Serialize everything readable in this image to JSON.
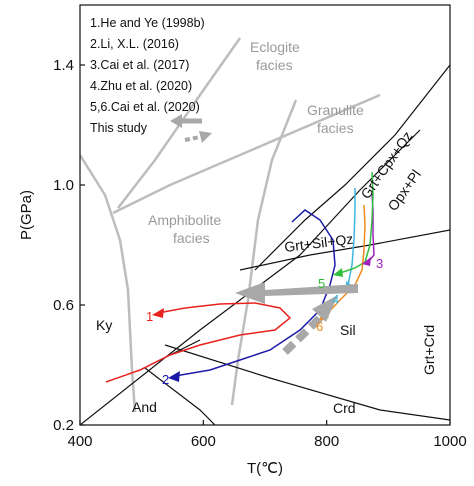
{
  "chart_data": {
    "type": "line",
    "xlabel": "T(℃)",
    "ylabel": "P(GPa)",
    "xlim": [
      400,
      1000
    ],
    "ylim": [
      0.2,
      1.6
    ],
    "xticks": [
      "400",
      "600",
      "800",
      "1000"
    ],
    "yticks": [
      "0.2",
      "0.6",
      "1.0",
      "1.4"
    ],
    "legend": {
      "placement": "top-left",
      "entries": [
        "1.He and Ye (1998b)",
        "2.Li, X.L. (2016)",
        "3.Cai et al. (2017)",
        "4.Zhu et al. (2020)",
        "5,6.Cai et al. (2020)",
        "This study"
      ]
    },
    "facies_labels": [
      "Eclogite facies",
      "Granulite facies",
      "Amphibolite facies"
    ],
    "field_labels": [
      "Ky",
      "And",
      "Sil",
      "Crd",
      "Grt+Crd",
      "Grt+Cpx+Qz",
      "Opx+Pl",
      "Grt+Sil+Qz"
    ],
    "path_labels": [
      "1",
      "2",
      "3",
      "4",
      "5",
      "6"
    ],
    "colors": {
      "facies_boundary": "#bdbdbd",
      "reaction_line": "#111111",
      "path1": "#e8231f",
      "path2": "#1a1aa8",
      "path3": "#a020c0",
      "path4": "#3fb6e0",
      "path5": "#2fbf3a",
      "path6": "#f08a1c",
      "this_study": "#a8a8a8"
    },
    "series": [
      {
        "name": "1",
        "values": [
          [
            510,
            0.37
          ],
          [
            600,
            0.47
          ],
          [
            700,
            0.54
          ],
          [
            735,
            0.56
          ],
          [
            745,
            0.59
          ],
          [
            715,
            0.62
          ],
          [
            650,
            0.62
          ],
          [
            520,
            0.56
          ]
        ]
      },
      {
        "name": "2",
        "values": [
          [
            590,
            0.35
          ],
          [
            640,
            0.38
          ],
          [
            700,
            0.43
          ],
          [
            760,
            0.52
          ],
          [
            800,
            0.63
          ],
          [
            822,
            0.75
          ],
          [
            803,
            0.86
          ],
          [
            760,
            0.87
          ]
        ]
      },
      {
        "name": "3",
        "values": [
          [
            877,
            0.94
          ],
          [
            875,
            0.88
          ],
          [
            872,
            0.8
          ],
          [
            858,
            0.74
          ]
        ]
      },
      {
        "name": "4",
        "values": [
          [
            848,
            1.03
          ],
          [
            847,
            0.9
          ],
          [
            846,
            0.78
          ],
          [
            843,
            0.7
          ],
          [
            838,
            0.66
          ]
        ]
      },
      {
        "name": "5",
        "values": [
          [
            878,
            1.07
          ],
          [
            876,
            0.95
          ],
          [
            873,
            0.84
          ],
          [
            860,
            0.76
          ],
          [
            840,
            0.73
          ],
          [
            828,
            0.71
          ]
        ]
      },
      {
        "name": "6",
        "values": [
          [
            860,
            0.98
          ],
          [
            860,
            0.88
          ],
          [
            857,
            0.79
          ],
          [
            853,
            0.73
          ],
          [
            835,
            0.65
          ],
          [
            818,
            0.58
          ]
        ]
      }
    ]
  }
}
